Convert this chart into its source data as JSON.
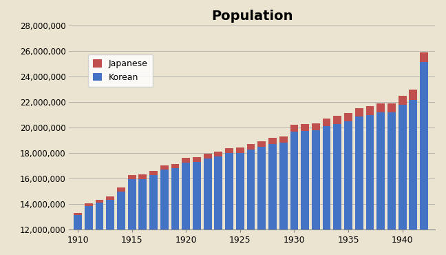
{
  "title": "Population",
  "years": [
    1910,
    1911,
    1912,
    1913,
    1914,
    1915,
    1916,
    1917,
    1918,
    1919,
    1920,
    1921,
    1922,
    1923,
    1924,
    1925,
    1926,
    1927,
    1928,
    1929,
    1930,
    1931,
    1932,
    1933,
    1934,
    1935,
    1936,
    1937,
    1938,
    1939,
    1940,
    1941,
    1942
  ],
  "korean": [
    13128000,
    13831000,
    14100000,
    14329000,
    14984000,
    15958000,
    15970000,
    16262000,
    16696000,
    16793000,
    17264000,
    17298000,
    17569000,
    17723000,
    17978000,
    18022000,
    18264000,
    18479000,
    18700000,
    18800000,
    19685000,
    19711000,
    19762000,
    20090000,
    20280000,
    20500000,
    20845000,
    21000000,
    21180000,
    21185000,
    21781000,
    22140000,
    25120000
  ],
  "japanese": [
    171000,
    210000,
    246000,
    284000,
    291000,
    303000,
    336000,
    337000,
    336000,
    346000,
    347000,
    380000,
    391000,
    406000,
    410000,
    424000,
    443000,
    455000,
    475000,
    495000,
    527000,
    570000,
    580000,
    600000,
    620000,
    650000,
    670000,
    700000,
    720000,
    730000,
    708000,
    820000,
    752000
  ],
  "korean_color": "#4472C4",
  "japanese_color": "#C0504D",
  "bg_color": "#EAE4D0",
  "ylim_min": 12000000,
  "ylim_max": 28000000,
  "ytick_step": 2000000,
  "title_fontsize": 14,
  "legend_labels": [
    "Japanese",
    "Korean"
  ],
  "bar_width": 0.75,
  "xlim_left": 1909.2,
  "xlim_right": 1943.0
}
